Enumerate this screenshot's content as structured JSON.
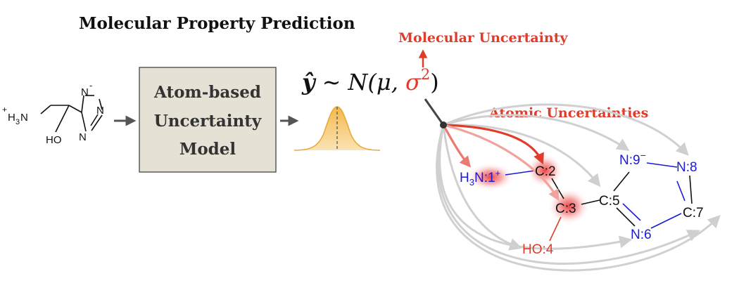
{
  "title": "Molecular Property Prediction",
  "input_molecule": {
    "charge": "+",
    "amine": "H",
    "amine_sub": "3",
    "amine_n": "N",
    "hydroxyl": "HO",
    "ring_n1": "N",
    "ring_n1_charge": "-",
    "ring_n2": "N",
    "ring_n3": "N"
  },
  "model_box": {
    "line1": "Atom-based",
    "line2": "Uncertainty",
    "line3": "Model"
  },
  "equation": {
    "lhs": "ŷ",
    "tilde": "∼",
    "dist": "N(μ, ",
    "sigma": "σ",
    "power": "2",
    "close": ")"
  },
  "molecular_uncertainty_label": "Molecular Uncertainty",
  "atomic_uncertainties_label": "Atomic Uncertainties",
  "atoms": {
    "n1": {
      "prefix": "H",
      "sub": "3",
      "label": "N:1",
      "charge": "+"
    },
    "c2": "C:2",
    "c3": "C:3",
    "o4": "HO:4",
    "c5": "C:5",
    "n6": "N:6",
    "c7": "C:7",
    "n8": "N:8",
    "n9": {
      "label": "N:9",
      "charge": "−"
    }
  },
  "colors": {
    "accent_red": "#e03b2b",
    "atom_blue": "#1a1adb",
    "model_box_fill": "#e5e1d5",
    "gaussian_fill": "#f6c97a",
    "gray_arrow": "#cccccc"
  }
}
